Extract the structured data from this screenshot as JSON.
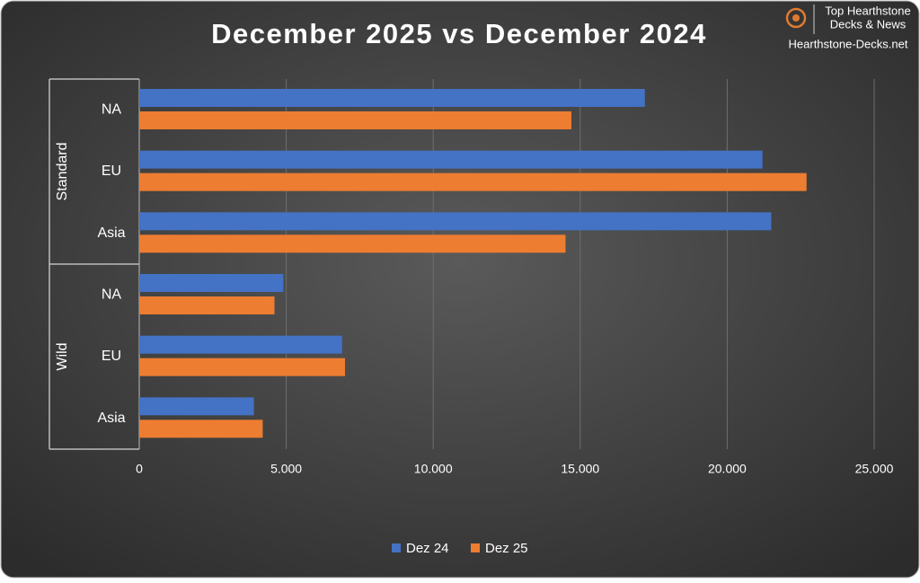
{
  "chart_data": {
    "type": "hbar",
    "title": "December 2025 vs December 2024",
    "groups": [
      {
        "name": "Standard",
        "categories": [
          "NA",
          "EU",
          "Asia"
        ]
      },
      {
        "name": "Wild",
        "categories": [
          "NA",
          "EU",
          "Asia"
        ]
      }
    ],
    "series": [
      {
        "name": "Dez 24",
        "color": "#4472c4",
        "values": [
          17200,
          21200,
          21500,
          4900,
          6900,
          3900
        ]
      },
      {
        "name": "Dez 25",
        "color": "#ed7d31",
        "values": [
          14700,
          22700,
          14500,
          4600,
          7000,
          4200
        ]
      }
    ],
    "xlim": [
      0,
      25000
    ],
    "xticks": [
      0,
      {
        "value": 5000,
        "label": "5.000"
      },
      {
        "value": 10000,
        "label": "10.000"
      },
      {
        "value": 15000,
        "label": "15.000"
      },
      {
        "value": 20000,
        "label": "20.000"
      },
      {
        "value": 25000,
        "label": "25.000"
      }
    ],
    "grid": true,
    "legend": "bottom"
  },
  "logo": {
    "line1": "Top Hearthstone",
    "line2": "Decks & News",
    "site": "Hearthstone-Decks.net"
  }
}
